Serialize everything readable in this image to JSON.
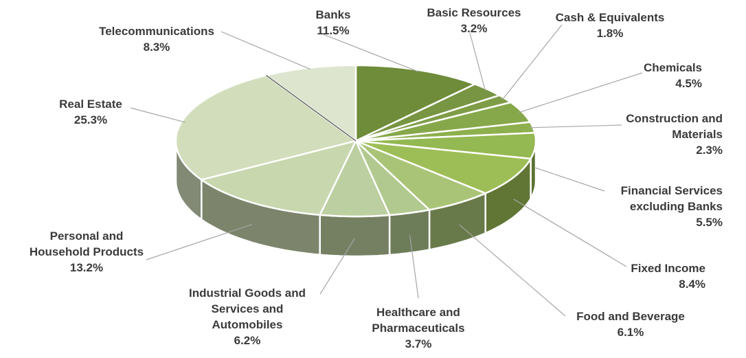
{
  "chart_data": {
    "type": "pie",
    "title": "",
    "slices": [
      {
        "label": "Banks",
        "value": 11.5,
        "value_label": "11.5%",
        "color": "#6e8c3a"
      },
      {
        "label": "Basic Resources",
        "value": 3.2,
        "value_label": "3.2%",
        "color": "#779542"
      },
      {
        "label": "Cash &  Equivalents",
        "value": 1.8,
        "value_label": "1.8%",
        "color": "#7f9d47"
      },
      {
        "label": "Chemicals",
        "value": 4.5,
        "value_label": "4.5%",
        "color": "#86a84a"
      },
      {
        "label": "Construction and Materials",
        "value": 2.3,
        "value_label": "2.3%",
        "color": "#8db04d"
      },
      {
        "label": "Financial Services excluding Banks",
        "value": 5.5,
        "value_label": "5.5%",
        "color": "#94b852"
      },
      {
        "label": "Fixed Income",
        "value": 8.4,
        "value_label": "8.4%",
        "color": "#9dbe56"
      },
      {
        "label": "Food and Beverage",
        "value": 6.1,
        "value_label": "6.1%",
        "color": "#a9c477"
      },
      {
        "label": "Healthcare and Pharmaceuticals",
        "value": 3.7,
        "value_label": "3.7%",
        "color": "#b1c98f"
      },
      {
        "label": "Industrial Goods and Services and Automobiles",
        "value": 6.2,
        "value_label": "6.2%",
        "color": "#bccfa0"
      },
      {
        "label": "Personal and Household Products",
        "value": 13.2,
        "value_label": "13.2%",
        "color": "#c8d7ad"
      },
      {
        "label": "Real Estate",
        "value": 25.3,
        "value_label": "25.3%",
        "color": "#d2ddbb"
      },
      {
        "label": "Telecommunications",
        "value": 8.3,
        "value_label": "8.3%",
        "color": "#dde5ce"
      }
    ],
    "label_lines": {
      "Banks": [
        "Banks",
        "11.5%"
      ],
      "Basic Resources": [
        "Basic Resources",
        "3.2%"
      ],
      "Cash &  Equivalents": [
        "Cash &  Equivalents",
        "1.8%"
      ],
      "Chemicals": [
        "Chemicals",
        "4.5%"
      ],
      "Construction and Materials": [
        "Construction and",
        "Materials",
        "2.3%"
      ],
      "Financial Services excluding Banks": [
        "Financial Services",
        "excluding Banks",
        "5.5%"
      ],
      "Fixed Income": [
        "Fixed Income",
        "8.4%"
      ],
      "Food and Beverage": [
        "Food and Beverage",
        "6.1%"
      ],
      "Healthcare and Pharmaceuticals": [
        "Healthcare and",
        "Pharmaceuticals",
        "3.7%"
      ],
      "Industrial Goods and Services and Automobiles": [
        "Industrial Goods and",
        "Services and",
        "Automobiles",
        "6.2%"
      ],
      "Personal and Household Products": [
        "Personal and",
        "Household Products",
        "13.2%"
      ],
      "Real Estate": [
        "Real Estate",
        "25.3%"
      ],
      "Telecommunications": [
        "Telecommunications",
        "8.3%"
      ]
    },
    "start_angle": "12 o'clock",
    "direction": "clockwise",
    "style": "3d-exploded-tilt",
    "legend": "none (labels with leader lines)"
  }
}
